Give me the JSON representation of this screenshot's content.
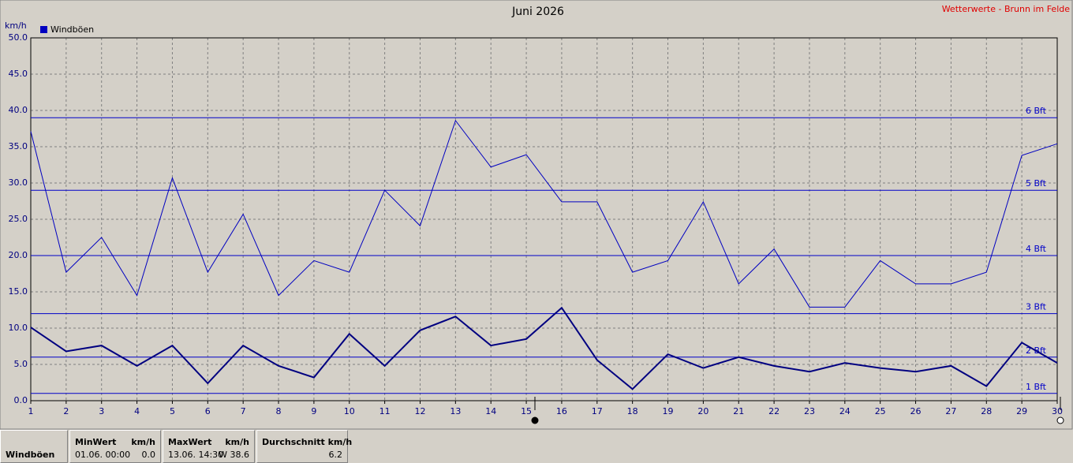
{
  "chart_data": {
    "type": "line",
    "title": "Juni 2026",
    "source": "Wetterwerte - Brunn im Felde",
    "y_label": "km/h",
    "x": [
      1,
      2,
      3,
      4,
      5,
      6,
      7,
      8,
      9,
      10,
      11,
      12,
      13,
      14,
      15,
      16,
      17,
      18,
      19,
      20,
      21,
      22,
      23,
      24,
      25,
      26,
      27,
      28,
      29,
      30
    ],
    "series": [
      {
        "name": "Windböen",
        "color": "#0000c0",
        "width": 1,
        "values": [
          37.1,
          17.7,
          22.5,
          14.5,
          30.7,
          17.7,
          25.7,
          14.5,
          19.3,
          17.7,
          29.0,
          24.1,
          38.6,
          32.2,
          33.9,
          27.4,
          27.4,
          17.7,
          19.3,
          27.4,
          16.1,
          20.9,
          12.9,
          12.9,
          19.3,
          16.1,
          16.1,
          17.7,
          33.8,
          35.4
        ]
      },
      {
        "color": "#000080",
        "width": 2,
        "values": [
          10.1,
          6.8,
          7.6,
          4.8,
          7.6,
          2.4,
          7.6,
          4.8,
          3.2,
          9.2,
          4.8,
          9.7,
          11.6,
          7.6,
          8.5,
          12.8,
          5.6,
          1.6,
          6.4,
          4.5,
          6.0,
          4.8,
          4.0,
          5.2,
          4.5,
          4.0,
          4.8,
          2.0,
          8.0,
          5.2
        ]
      }
    ],
    "reference_lines": [
      {
        "value": 1,
        "label": "1 Bft"
      },
      {
        "value": 6,
        "label": "2 Bft"
      },
      {
        "value": 12,
        "label": "3 Bft"
      },
      {
        "value": 20,
        "label": "4 Bft"
      },
      {
        "value": 29,
        "label": "5 Bft"
      },
      {
        "value": 39,
        "label": "6 Bft"
      }
    ],
    "reference_color": "#0000c8",
    "xlim": [
      1,
      30
    ],
    "xticks": [
      1,
      2,
      3,
      4,
      5,
      6,
      7,
      8,
      9,
      10,
      11,
      12,
      13,
      14,
      15,
      16,
      17,
      18,
      19,
      20,
      21,
      22,
      23,
      24,
      25,
      26,
      27,
      28,
      29,
      30
    ],
    "ylim": [
      0,
      50
    ],
    "yticks": [
      {
        "value": 0,
        "label": "0.0"
      },
      {
        "value": 5,
        "label": "5.0"
      },
      {
        "value": 10,
        "label": "10.0"
      },
      {
        "value": 15,
        "label": "15.0"
      },
      {
        "value": 20,
        "label": "20.0"
      },
      {
        "value": 25,
        "label": "25.0"
      },
      {
        "value": 30,
        "label": "30.0"
      },
      {
        "value": 35,
        "label": "35.0"
      },
      {
        "value": 40,
        "label": "40.0"
      },
      {
        "value": 45,
        "label": "45.0"
      },
      {
        "value": 50,
        "label": "50.0"
      }
    ],
    "grid": true,
    "legend": "top-left"
  },
  "stats": {
    "row_label": "Windböen",
    "min": {
      "header": "MinWert",
      "unit": "km/h",
      "time": "01.06.  00:00",
      "value": "0.0"
    },
    "max": {
      "header": "MaxWert",
      "unit": "km/h",
      "time": "13.06.  14:30",
      "value": "W 38.6"
    },
    "avg": {
      "header": "Durchschnitt km/h",
      "value": "6.2"
    }
  }
}
